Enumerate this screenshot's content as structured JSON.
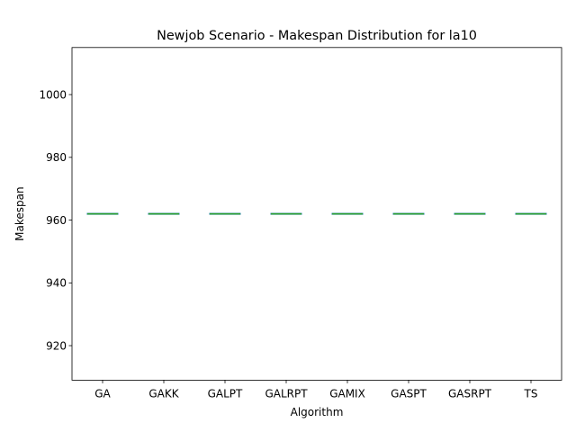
{
  "chart_data": {
    "type": "box",
    "title": "Newjob Scenario - Makespan Distribution for la10",
    "xlabel": "Algorithm",
    "ylabel": "Makespan",
    "categories": [
      "GA",
      "GAKK",
      "GALPT",
      "GALRPT",
      "GAMIX",
      "GASPT",
      "GASRPT",
      "TS"
    ],
    "values": [
      962,
      962,
      962,
      962,
      962,
      962,
      962,
      962
    ],
    "ylim": [
      909,
      1015
    ],
    "yticks": [
      920,
      940,
      960,
      980,
      1000
    ],
    "grid": false,
    "colors": {
      "median": "#2ca02c",
      "box": "#1f77b4",
      "axis": "#000000"
    }
  }
}
